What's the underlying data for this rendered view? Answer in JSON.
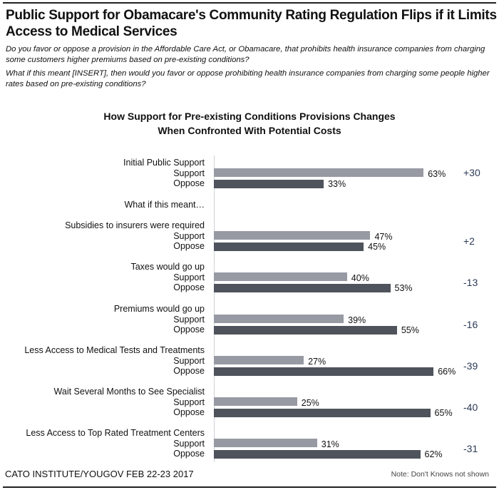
{
  "title": "Public Support for Obamacare's Community Rating Regulation Flips if it Limits Access to Medical Services",
  "question1": "Do you favor or oppose a provision in the Affordable Care Act, or Obamacare, that prohibits health insurance companies from charging some customers higher premiums based on pre-existing conditions?",
  "question2": "What if this meant [INSERT], then would you favor or oppose prohibiting health insurance companies from charging some people higher rates based on pre-existing conditions?",
  "source": "CATO INSTITUTE/YOUGOV FEB 22-23 2017",
  "note": "Note: Don't Knows not shown",
  "chart_data": {
    "type": "bar",
    "orientation": "horizontal",
    "title": "How Support for Pre-existing Conditions Provisions Changes When Confronted With Potential Costs",
    "title_line1": "How Support for Pre-existing Conditions Provisions Changes",
    "title_line2": "When Confronted With Potential Costs",
    "section_label": "What if this meant…",
    "support_label": "Support",
    "oppose_label": "Oppose",
    "colors": {
      "support": "#979aa2",
      "oppose": "#4f535c",
      "net": "#2b3a55"
    },
    "xlim": [
      0,
      100
    ],
    "grid": false,
    "groups": [
      {
        "label": "Initial Public Support",
        "support": 63,
        "oppose": 33,
        "support_text": "63%",
        "oppose_text": "33%",
        "net": "+30"
      },
      {
        "label": "Subsidies to insurers were required",
        "support": 47,
        "oppose": 45,
        "support_text": "47%",
        "oppose_text": "45%",
        "net": "+2"
      },
      {
        "label": "Taxes would go up",
        "support": 40,
        "oppose": 53,
        "support_text": "40%",
        "oppose_text": "53%",
        "net": "-13"
      },
      {
        "label": "Premiums would go up",
        "support": 39,
        "oppose": 55,
        "support_text": "39%",
        "oppose_text": "55%",
        "net": "-16"
      },
      {
        "label": "Less Access to Medical Tests and Treatments",
        "support": 27,
        "oppose": 66,
        "support_text": "27%",
        "oppose_text": "66%",
        "net": "-39"
      },
      {
        "label": "Wait Several Months to See Specialist",
        "support": 25,
        "oppose": 65,
        "support_text": "25%",
        "oppose_text": "65%",
        "net": "-40"
      },
      {
        "label": "Less Access to Top Rated Treatment Centers",
        "support": 31,
        "oppose": 62,
        "support_text": "31%",
        "oppose_text": "62%",
        "net": "-31"
      }
    ]
  }
}
